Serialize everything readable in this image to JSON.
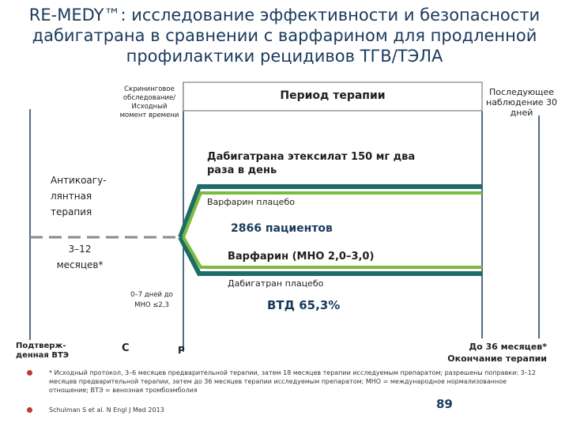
{
  "title": "RE-MEDY™: исследование эффективности и безопасности\nдабигатрана в сравнении с варфарином для продленной\nпрофилактики рецидивов ТГВ/ТЭЛА",
  "screening_label": "Скрининговое обследование/ Исходный момент времени",
  "therapy_period_label": "Период терапии",
  "followup_label": "Последующее наблюдение 30 дней",
  "dabigatran_label": "Дабигатрана этексилат 150 мг два раза в день",
  "warfarin_placebo_label": "Варфарин плацебо",
  "anticoag_label": "Антикоагу- лянтная терапия",
  "patients_label": "2866 пациентов",
  "months_label": "3–12 месяцев*",
  "warfarin_label": "Варфарин (МНО 2,0–3,0)",
  "dabigatran_placebo_label": "Дабигатран плацебо",
  "days_label": "0–7 дней до МНО ≤2,3",
  "vtd_label": "ВТД 65,3%",
  "confirmed_label": "Подтверж- денная ВТЭ",
  "c_label": "С",
  "p_label": "Р",
  "end_label": "До 36 месяцев* Окончание терапии",
  "footnote": "* Исходный протокол, 3–6 месяцев предварительной терапии, затем 18 месяцев терапии исследуемым препаратом; разрешены поправки: 3–12 месяцев предварительной терапии, затем до 36 месяцев терапии исследуемым препаратом; МНО = международное нормализованное отношение; ВТЭ = венозная тромбоэмболия",
  "citation": "Schulman S et al. N Engl J Med 2013",
  "page_number": "89",
  "colors": {
    "teal": "#1e6b68",
    "green": "#7dbb3f",
    "gray": "#9a9a9a",
    "title": "#1a3a5c",
    "bullet": "#c0392b"
  }
}
